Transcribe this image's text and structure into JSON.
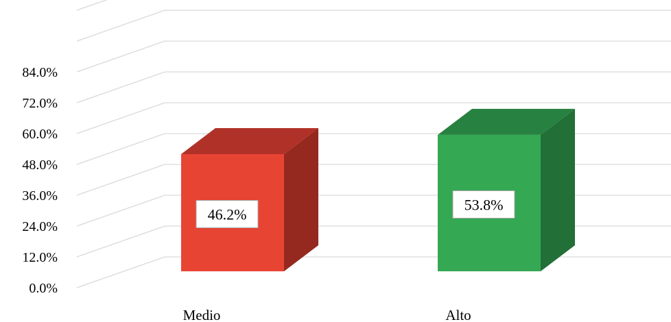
{
  "chart_data": {
    "type": "bar",
    "categories": [
      "Medio",
      "Alto"
    ],
    "series": [
      {
        "values": [
          46.2,
          53.8
        ]
      }
    ],
    "value_labels": [
      "46.2%",
      "53.8%"
    ],
    "y_ticks": [
      "0.0%",
      "12.0%",
      "24.0%",
      "36.0%",
      "48.0%",
      "60.0%",
      "72.0%",
      "84.0%"
    ],
    "ylim": [
      0,
      108
    ],
    "grid": true,
    "legend": "none",
    "style": "3d-column",
    "colors": {
      "bars": [
        "#E84434",
        "#34A853"
      ],
      "bar_tops": [
        "#B03127",
        "#278140"
      ],
      "bar_sides": [
        "#95291F",
        "#226F37"
      ],
      "grid": "#d9d9d9",
      "label_box_border": "#a6a6a6"
    }
  }
}
